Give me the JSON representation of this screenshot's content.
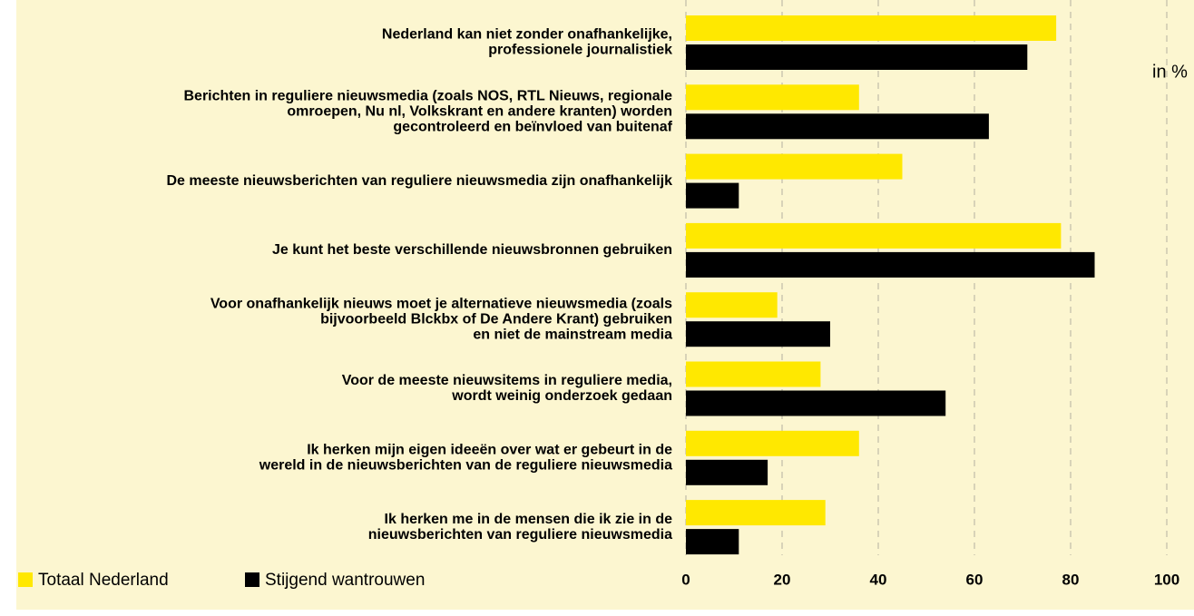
{
  "chart_data": {
    "type": "bar",
    "orientation": "horizontal",
    "unit_label": "in %",
    "categories": [
      [
        "Nederland kan niet zonder onafhankelijke,",
        "professionele journalistiek"
      ],
      [
        "Berichten in reguliere nieuwsmedia (zoals NOS, RTL Nieuws, regionale",
        "omroepen, Nu nl, Volkskrant en andere kranten) worden",
        "gecontroleerd en beïnvloed van buitenaf"
      ],
      [
        "De meeste nieuwsberichten van reguliere nieuwsmedia zijn onafhankelijk"
      ],
      [
        "Je kunt het beste verschillende nieuwsbronnen gebruiken"
      ],
      [
        "Voor onafhankelijk nieuws moet je alternatieve nieuwsmedia (zoals",
        "bijvoorbeeld Blckbx of De Andere Krant) gebruiken",
        "en niet de mainstream media"
      ],
      [
        "Voor de meeste nieuwsitems in reguliere media,",
        "wordt weinig onderzoek gedaan"
      ],
      [
        "Ik herken mijn eigen ideeën over wat er gebeurt in de",
        "wereld in de nieuwsberichten van de reguliere nieuwsmedia"
      ],
      [
        "Ik herken me in de mensen die ik zie in de",
        "nieuwsberichten van reguliere nieuwsmedia"
      ]
    ],
    "series": [
      {
        "name": "Totaal Nederland",
        "color": "#ffe800",
        "values": [
          77,
          36,
          45,
          78,
          19,
          28,
          36,
          29
        ]
      },
      {
        "name": "Stijgend wantrouwen",
        "color": "#000000",
        "values": [
          71,
          63,
          11,
          85,
          30,
          54,
          17,
          11
        ]
      }
    ],
    "xlim": [
      0,
      100
    ],
    "xticks": [
      0,
      20,
      40,
      60,
      80,
      100
    ],
    "grid": true
  }
}
